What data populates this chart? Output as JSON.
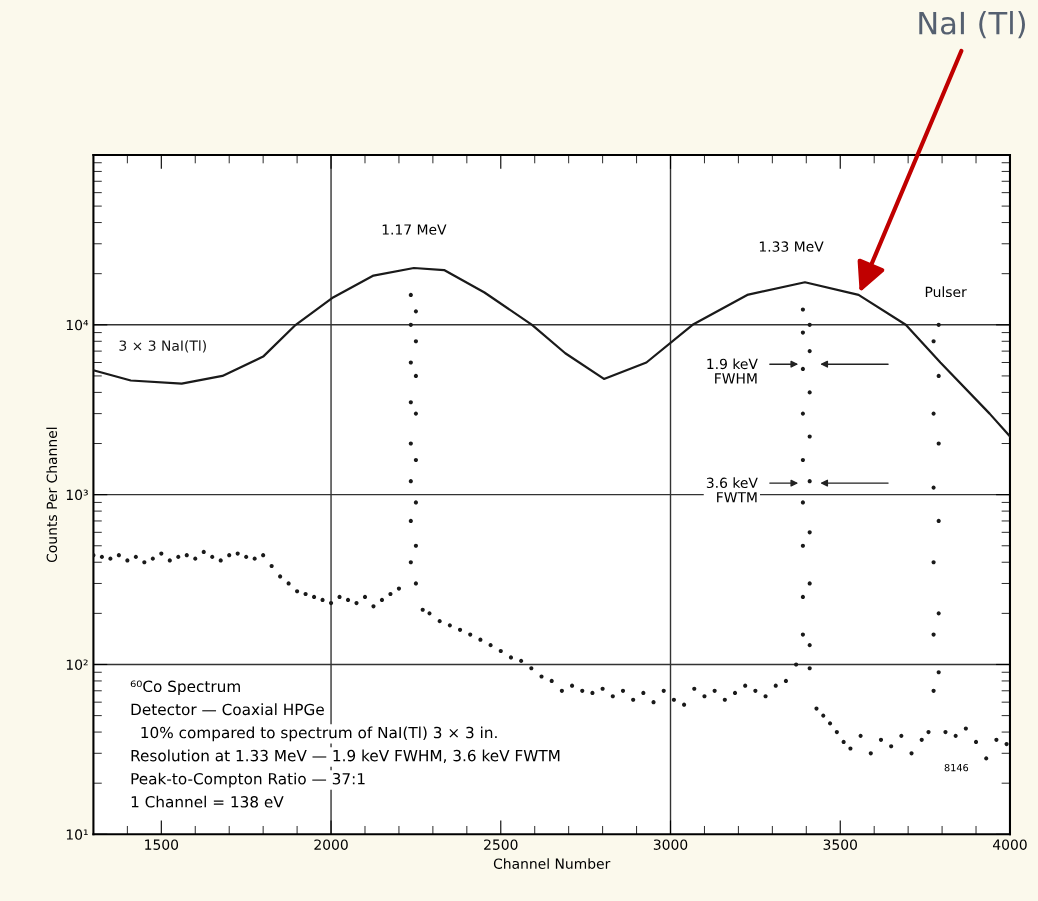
{
  "chart_data": {
    "type": "line",
    "xlabel": "Channel Number",
    "ylabel": "Counts Per Channel",
    "log": "y",
    "xlim": [
      1300,
      4000
    ],
    "ylim": [
      10,
      100000
    ],
    "xticks": [
      {
        "value": 1400,
        "label": null
      },
      1500,
      {
        "value": 1600,
        "label": null
      },
      {
        "value": 1700,
        "label": null
      },
      {
        "value": 1800,
        "label": null
      },
      {
        "value": 1900,
        "label": null
      },
      2000,
      {
        "value": 2100,
        "label": null
      },
      {
        "value": 2200,
        "label": null
      },
      {
        "value": 2300,
        "label": null
      },
      {
        "value": 2400,
        "label": null
      },
      2500,
      {
        "value": 2600,
        "label": null
      },
      {
        "value": 2700,
        "label": null
      },
      {
        "value": 2800,
        "label": null
      },
      {
        "value": 2900,
        "label": null
      },
      3000,
      {
        "value": 3100,
        "label": null
      },
      {
        "value": 3200,
        "label": null
      },
      {
        "value": 3300,
        "label": null
      },
      {
        "value": 3400,
        "label": null
      },
      3500,
      {
        "value": 3600,
        "label": null
      },
      {
        "value": 3700,
        "label": null
      },
      {
        "value": 3800,
        "label": null
      },
      {
        "value": 3900,
        "label": null
      },
      4000
    ],
    "yticks": [
      {
        "value": 10,
        "label": "10¹"
      },
      {
        "value": 100,
        "label": "10²"
      },
      {
        "value": 1000,
        "label": "10³"
      },
      {
        "value": 10000,
        "label": "10⁴"
      },
      {
        "value": 100000,
        "label": null
      }
    ],
    "ref_lines": [
      {
        "axis": "x",
        "value": 2000,
        "color": "#333333"
      },
      {
        "axis": "x",
        "value": 3000,
        "color": "#333333"
      },
      {
        "axis": "y",
        "value": 100,
        "color": "#333333"
      },
      {
        "axis": "y",
        "value": 1000,
        "color": "#333333"
      },
      {
        "axis": "y",
        "value": 10000,
        "color": "#333333"
      }
    ],
    "series": [
      {
        "name": "3 × 3 NaI(Tl)",
        "color": "#1a1a1a",
        "marker": "none",
        "x": [
          1300,
          1410,
          1560,
          1680,
          1800,
          1896,
          2006,
          2125,
          2244,
          2333,
          2452,
          2592,
          2690,
          2804,
          2929,
          3065,
          3226,
          3396,
          3554,
          3693,
          3795,
          3940,
          4000
        ],
        "values": [
          5400,
          4700,
          4500,
          5000,
          6500,
          10000,
          14500,
          19500,
          21600,
          21000,
          15500,
          10000,
          6800,
          4800,
          6000,
          10000,
          15000,
          17800,
          15000,
          10000,
          6000,
          3000,
          2200
        ]
      },
      {
        "type": "scatter",
        "color": "#1a1a1a",
        "marker": "circle",
        "x": [
          1300,
          1325,
          1350,
          1375,
          1400,
          1425,
          1450,
          1475,
          1500,
          1525,
          1550,
          1575,
          1600,
          1625,
          1650,
          1675,
          1700,
          1725,
          1750,
          1775,
          1800,
          1825,
          1850,
          1875,
          1900,
          1925,
          1950,
          1975,
          2000,
          2025,
          2050,
          2075,
          2100,
          2125,
          2150,
          2175,
          2200,
          2235,
          2235,
          2235,
          2235,
          2235,
          2235,
          2235,
          2235,
          2250,
          2250,
          2250,
          2250,
          2250,
          2250,
          2250,
          2250,
          2270,
          2290,
          2320,
          2350,
          2380,
          2410,
          2440,
          2470,
          2500,
          2530,
          2560,
          2590,
          2620,
          2650,
          2680,
          2710,
          2740,
          2770,
          2800,
          2830,
          2860,
          2890,
          2920,
          2950,
          2980,
          3010,
          3040,
          3070,
          3100,
          3130,
          3160,
          3190,
          3220,
          3250,
          3280,
          3310,
          3340,
          3370,
          3390,
          3390,
          3390,
          3390,
          3390,
          3390,
          3390,
          3390,
          3390,
          3410,
          3410,
          3410,
          3410,
          3410,
          3410,
          3410,
          3410,
          3410,
          3430,
          3450,
          3470,
          3490,
          3510,
          3530,
          3560,
          3590,
          3620,
          3650,
          3680,
          3710,
          3740,
          3760,
          3775,
          3775,
          3775,
          3775,
          3775,
          3775,
          3790,
          3790,
          3790,
          3790,
          3790,
          3790,
          3810,
          3840,
          3870,
          3900,
          3930,
          3960,
          3990
        ],
        "values": [
          440,
          430,
          420,
          440,
          410,
          430,
          400,
          420,
          450,
          410,
          430,
          440,
          420,
          460,
          430,
          410,
          440,
          450,
          430,
          420,
          440,
          380,
          330,
          300,
          270,
          260,
          250,
          240,
          230,
          250,
          240,
          230,
          250,
          220,
          240,
          260,
          280,
          400,
          700,
          1200,
          2000,
          3500,
          6000,
          10000,
          15000,
          12000,
          8000,
          5000,
          3000,
          1600,
          900,
          500,
          300,
          210,
          200,
          180,
          170,
          160,
          150,
          140,
          130,
          120,
          110,
          105,
          95,
          85,
          80,
          70,
          75,
          70,
          68,
          72,
          65,
          70,
          62,
          68,
          60,
          70,
          62,
          58,
          72,
          65,
          70,
          62,
          68,
          75,
          70,
          65,
          75,
          80,
          100,
          150,
          250,
          500,
          900,
          1600,
          3000,
          5500,
          9000,
          12300,
          10000,
          7000,
          4000,
          2200,
          1200,
          600,
          300,
          130,
          95,
          55,
          50,
          45,
          40,
          35,
          32,
          38,
          30,
          36,
          33,
          38,
          30,
          36,
          40,
          70,
          150,
          400,
          1100,
          3000,
          8000,
          10000,
          5000,
          2000,
          700,
          200,
          90,
          40,
          38,
          42,
          35,
          28,
          36,
          34
        ]
      }
    ],
    "annotations": [
      {
        "text": "1.17 MeV",
        "x": 2244,
        "y": 21600
      },
      {
        "text": "1.33 MeV",
        "x": 3396,
        "y": 17800
      },
      {
        "text": "Pulser",
        "x": 3790,
        "y": 10000
      },
      {
        "text": "NaI (Tl)",
        "x": 3554,
        "y": 15000
      },
      "1.9 keV\nFWHM",
      "3.6 keV\nFWTM",
      "⁶⁰Co Spectrum",
      "Detector — Coaxial HPGe",
      "  10% compared to spectrum of NaI(Tl) 3 × 3 in.",
      "Resolution at 1.33 MeV — 1.9 keV FWHM, 3.6 keV FWTM",
      "Peak-to-Compton Ratio — 37:1",
      "1 Channel = 138 eV",
      "8146"
    ]
  }
}
